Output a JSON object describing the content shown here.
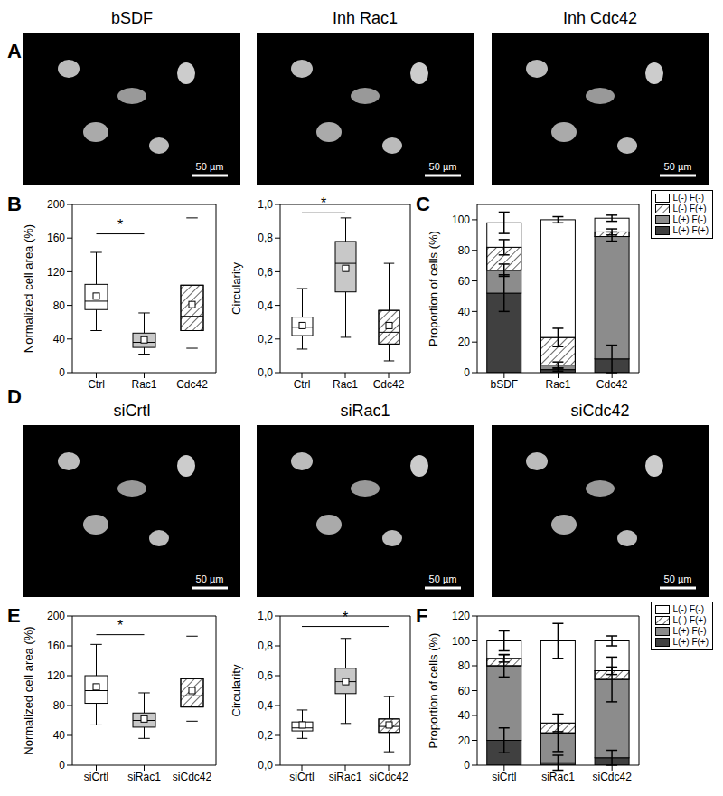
{
  "panel_labels": [
    "A",
    "B",
    "C",
    "D",
    "E",
    "F"
  ],
  "images": [
    {
      "titles": [
        "bSDF",
        "Inh Rac1",
        "Inh Cdc42"
      ],
      "scale_bar": "50 µm"
    },
    {
      "titles": [
        "siCrtl",
        "siRac1",
        "siCdc42"
      ],
      "scale_bar": "50 µm"
    }
  ],
  "chart_data": [
    {
      "type": "box",
      "y_label": "Normalized cell area (%)",
      "categories": [
        "Ctrl",
        "Rac1",
        "Cdc42"
      ],
      "ylim": [
        0,
        200
      ],
      "yticks": [
        0,
        40,
        80,
        120,
        160,
        200
      ],
      "boxes": [
        {
          "min": 50,
          "q1": 75,
          "median": 85,
          "q3": 105,
          "max": 143,
          "mean": 91,
          "color": "#ffffff"
        },
        {
          "min": 22,
          "q1": 30,
          "median": 36,
          "q3": 47,
          "max": 71,
          "mean": 39,
          "color": "#c8c8c8"
        },
        {
          "min": 29,
          "q1": 50,
          "median": 67,
          "q3": 104,
          "max": 184,
          "mean": 81,
          "color": "#ffffff",
          "line_style": "hatched"
        }
      ],
      "annotations": [
        {
          "text": "*",
          "from": "Ctrl",
          "to": "Rac1",
          "y": 165
        }
      ]
    },
    {
      "type": "box",
      "y_label": "Circularity",
      "categories": [
        "Ctrl",
        "Rac1",
        "Cdc42"
      ],
      "ylim": [
        0,
        1
      ],
      "yticks": [
        {
          "value": 0,
          "label": "0,0"
        },
        {
          "value": 0.2,
          "label": "0,2"
        },
        {
          "value": 0.4,
          "label": "0,4"
        },
        {
          "value": 0.6,
          "label": "0,6"
        },
        {
          "value": 0.8,
          "label": "0,8"
        },
        {
          "value": 1,
          "label": "1,0"
        }
      ],
      "boxes": [
        {
          "min": 0.14,
          "q1": 0.22,
          "median": 0.27,
          "q3": 0.33,
          "max": 0.5,
          "mean": 0.28,
          "color": "#ffffff"
        },
        {
          "min": 0.21,
          "q1": 0.48,
          "median": 0.65,
          "q3": 0.78,
          "max": 0.92,
          "mean": 0.62,
          "color": "#c8c8c8"
        },
        {
          "min": 0.07,
          "q1": 0.17,
          "median": 0.24,
          "q3": 0.37,
          "max": 0.65,
          "mean": 0.28,
          "color": "#ffffff",
          "line_style": "hatched"
        }
      ],
      "annotations": [
        {
          "text": "*",
          "from": "Ctrl",
          "to": "Rac1",
          "y": 0.95
        }
      ]
    },
    {
      "type": "bar",
      "stacked": true,
      "legend": "top right",
      "y_label": "Proportion of cells (%)",
      "categories": [
        "bSDF",
        "Rac1",
        "Cdc42"
      ],
      "ylim": [
        0,
        110
      ],
      "yticks": [
        0,
        20,
        40,
        60,
        80,
        100
      ],
      "series": [
        {
          "name": "L(-) F(-)",
          "color": "#ffffff",
          "values": [
            16,
            77,
            9
          ],
          "errors": [
            7,
            2,
            2
          ]
        },
        {
          "name": "L(-) F(+)",
          "color": "#ffffff",
          "line_style": "hatched",
          "values": [
            15,
            18,
            3
          ],
          "errors": [
            5,
            6,
            2
          ]
        },
        {
          "name": "L(+) F(-)",
          "color": "#8c8c8c",
          "values": [
            15,
            3,
            80
          ],
          "errors": [
            4,
            2,
            3
          ]
        },
        {
          "name": "L(+) F(+)",
          "color": "#404040",
          "values": [
            52,
            2,
            9
          ],
          "errors": [
            12,
            1,
            9
          ]
        }
      ]
    },
    {
      "type": "box",
      "y_label": "Normalized cell area (%)",
      "categories": [
        "siCrtl",
        "siRac1",
        "siCdc42"
      ],
      "ylim": [
        0,
        200
      ],
      "yticks": [
        0,
        40,
        80,
        120,
        160,
        200
      ],
      "boxes": [
        {
          "min": 54,
          "q1": 83,
          "median": 100,
          "q3": 120,
          "max": 162,
          "mean": 105,
          "color": "#ffffff"
        },
        {
          "min": 36,
          "q1": 51,
          "median": 60,
          "q3": 70,
          "max": 97,
          "mean": 62,
          "color": "#c8c8c8"
        },
        {
          "min": 59,
          "q1": 78,
          "median": 93,
          "q3": 116,
          "max": 173,
          "mean": 100,
          "color": "#ffffff",
          "line_style": "hatched"
        }
      ],
      "annotations": [
        {
          "text": "*",
          "from": "siCrtl",
          "to": "siRac1",
          "y": 175
        }
      ]
    },
    {
      "type": "box",
      "y_label": "Circularity",
      "categories": [
        "siCrtl",
        "siRac1",
        "siCdc42"
      ],
      "ylim": [
        0,
        1
      ],
      "yticks": [
        {
          "value": 0,
          "label": "0,0"
        },
        {
          "value": 0.2,
          "label": "0,2"
        },
        {
          "value": 0.4,
          "label": "0,4"
        },
        {
          "value": 0.6,
          "label": "0,6"
        },
        {
          "value": 0.8,
          "label": "0,8"
        },
        {
          "value": 1,
          "label": "1,0"
        }
      ],
      "boxes": [
        {
          "min": 0.18,
          "q1": 0.23,
          "median": 0.25,
          "q3": 0.29,
          "max": 0.37,
          "mean": 0.27,
          "color": "#ffffff"
        },
        {
          "min": 0.28,
          "q1": 0.48,
          "median": 0.56,
          "q3": 0.65,
          "max": 0.85,
          "mean": 0.56,
          "color": "#c8c8c8"
        },
        {
          "min": 0.09,
          "q1": 0.22,
          "median": 0.26,
          "q3": 0.31,
          "max": 0.46,
          "mean": 0.27,
          "color": "#ffffff",
          "line_style": "hatched"
        }
      ],
      "annotations": [
        {
          "text": "*",
          "from": "siCrtl",
          "to": "siCdc42",
          "y": 0.93
        }
      ]
    },
    {
      "type": "bar",
      "stacked": true,
      "legend": "top right",
      "y_label": "Proportion of cells (%)",
      "categories": [
        "siCrtl",
        "siRac1",
        "siCdc42"
      ],
      "ylim": [
        0,
        120
      ],
      "yticks": [
        0,
        20,
        40,
        60,
        80,
        100,
        120
      ],
      "series": [
        {
          "name": "L(-) F(-)",
          "color": "#ffffff",
          "values": [
            14,
            66,
            24
          ],
          "errors": [
            8,
            14,
            4
          ]
        },
        {
          "name": "L(-) F(+)",
          "color": "#ffffff",
          "line_style": "hatched",
          "values": [
            6,
            8,
            7
          ],
          "errors": [
            3,
            7,
            3
          ]
        },
        {
          "name": "L(+) F(-)",
          "color": "#8c8c8c",
          "values": [
            60,
            24,
            63
          ],
          "errors": [
            9,
            15,
            18
          ]
        },
        {
          "name": "L(+) F(+)",
          "color": "#404040",
          "values": [
            20,
            2,
            6
          ],
          "errors": [
            10,
            6,
            6
          ]
        }
      ]
    }
  ]
}
